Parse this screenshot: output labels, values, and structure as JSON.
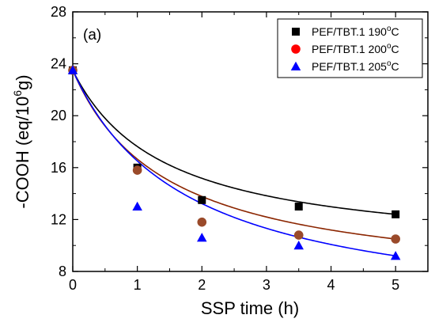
{
  "chart_data": {
    "type": "scatter",
    "panel_label": "(a)",
    "xlabel": "SSP time (h)",
    "ylabel": "-COOH (eq/10",
    "ylabel_sup": "6",
    "ylabel_tail": "g)",
    "xlim": [
      0,
      5.5
    ],
    "ylim": [
      8,
      28
    ],
    "xticks": [
      0,
      1,
      2,
      3,
      4,
      5
    ],
    "yticks": [
      8,
      12,
      16,
      20,
      24,
      28
    ],
    "legend_position": "top-right",
    "series": [
      {
        "name": "PEF/TBT.1 190",
        "name_sup": "o",
        "name_tail": "C",
        "marker": "square",
        "color": "#000000",
        "fit_color": "#000000",
        "x": [
          0,
          1,
          2,
          3.5,
          5
        ],
        "y": [
          23.5,
          16.0,
          13.5,
          13.0,
          12.4
        ],
        "fit_k": 1.43
      },
      {
        "name": "PEF/TBT.1 200",
        "name_sup": "o",
        "name_tail": "C",
        "marker": "circle",
        "color": "#ff0000",
        "point_fill": "#9a4a2a",
        "fit_color": "#8b2500",
        "x": [
          0,
          1,
          2,
          3.5,
          5
        ],
        "y": [
          23.5,
          15.8,
          11.8,
          10.8,
          10.5
        ],
        "fit_k": 1.45
      },
      {
        "name": "PEF/TBT.1 205",
        "name_sup": "o",
        "name_tail": "C",
        "marker": "triangle",
        "color": "#0000ff",
        "fit_color": "#0000ff",
        "x": [
          0,
          1,
          2,
          3.5,
          5
        ],
        "y": [
          23.5,
          13.0,
          10.6,
          10.0,
          9.2
        ],
        "fit_k": 1.77
      }
    ]
  }
}
